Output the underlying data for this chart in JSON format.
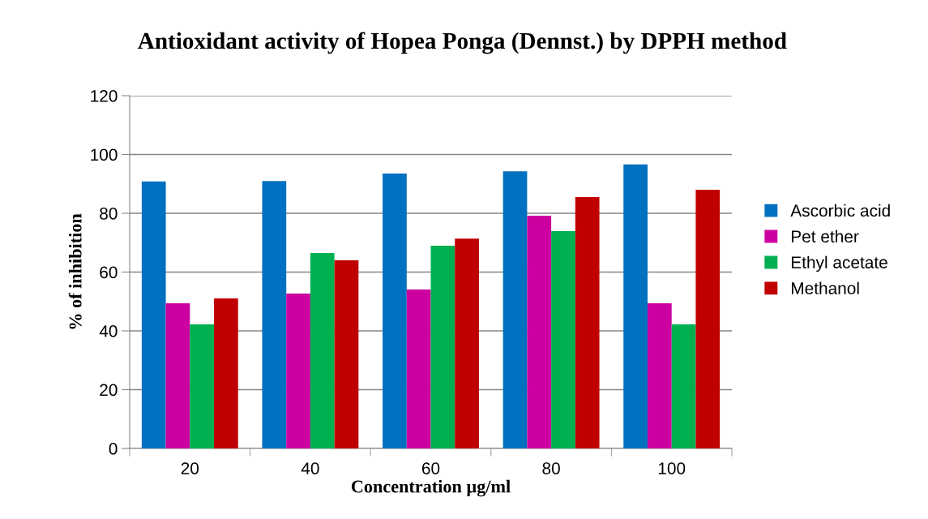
{
  "chart_data": {
    "type": "bar",
    "title": "Antioxidant activity of Hopea Ponga (Dennst.) by DPPH method",
    "xlabel": "Concentration µg/ml",
    "ylabel": "% of inhibition",
    "categories": [
      "20",
      "40",
      "60",
      "80",
      "100"
    ],
    "series": [
      {
        "name": "Ascorbic acid",
        "color": "#0070c0",
        "values": [
          90.8,
          91.0,
          93.5,
          94.3,
          96.6
        ]
      },
      {
        "name": "Pet ether",
        "color": "#cc00a0",
        "values": [
          49.4,
          52.7,
          54.1,
          79.2,
          49.4
        ]
      },
      {
        "name": "Ethyl acetate",
        "color": "#00b050",
        "values": [
          42.2,
          66.5,
          69.0,
          73.9,
          42.2
        ]
      },
      {
        "name": "Methanol",
        "color": "#c00000",
        "values": [
          51.0,
          64.0,
          71.4,
          85.5,
          88.0
        ]
      }
    ],
    "ylim": [
      0,
      120
    ],
    "yticks": [
      0,
      20,
      40,
      60,
      80,
      100,
      120
    ],
    "grid": "y",
    "legend": "right"
  }
}
